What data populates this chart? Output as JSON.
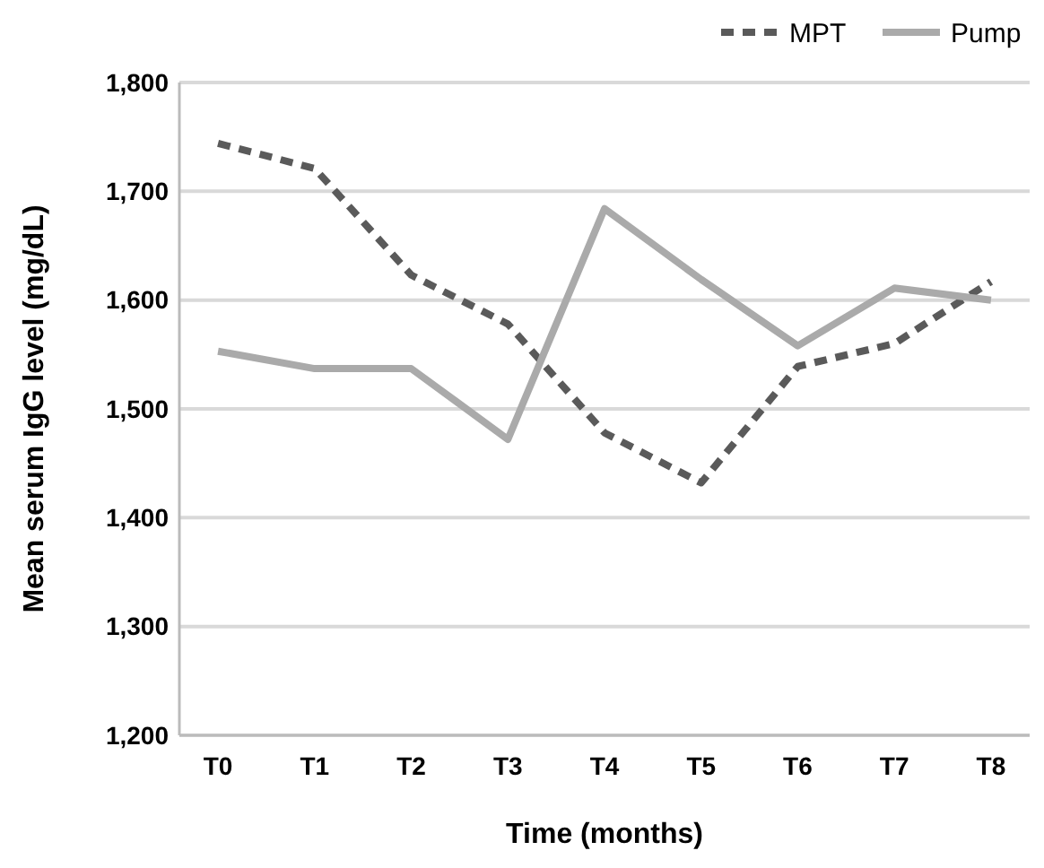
{
  "chart_data": {
    "type": "line",
    "xlabel": "Time (months)",
    "ylabel": "Mean serum IgG level (mg/dL)",
    "categories": [
      "T0",
      "T1",
      "T2",
      "T3",
      "T4",
      "T5",
      "T6",
      "T7",
      "T8"
    ],
    "series": [
      {
        "name": "MPT",
        "color": "#5a5a5a",
        "line_style": "dashed",
        "values": [
          1744,
          1721,
          1623,
          1578,
          1478,
          1432,
          1539,
          1560,
          1617
        ]
      },
      {
        "name": "Pump",
        "color": "#aaaaaa",
        "line_style": "solid",
        "values": [
          1553,
          1537,
          1537,
          1472,
          1684,
          1619,
          1558,
          1611,
          1600
        ]
      }
    ],
    "ylim": [
      1200,
      1800
    ],
    "yticks": [
      {
        "value": 1200,
        "label": "1,200"
      },
      {
        "value": 1300,
        "label": "1,300"
      },
      {
        "value": 1400,
        "label": "1,400"
      },
      {
        "value": 1500,
        "label": "1,500"
      },
      {
        "value": 1600,
        "label": "1,600"
      },
      {
        "value": 1700,
        "label": "1,700"
      },
      {
        "value": 1800,
        "label": "1,800"
      }
    ],
    "grid": "y",
    "legend": "top right",
    "marker": "none"
  }
}
